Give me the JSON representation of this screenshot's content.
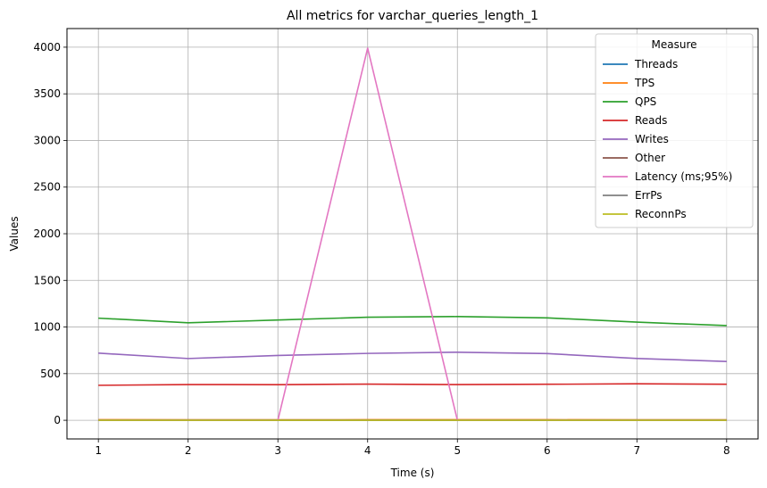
{
  "chart_data": {
    "type": "line",
    "title": "All metrics for varchar_queries_length_1",
    "xlabel": "Time (s)",
    "ylabel": "Values",
    "x": [
      1,
      2,
      3,
      4,
      5,
      6,
      7,
      8
    ],
    "xlim": [
      0.65,
      8.35
    ],
    "ylim": [
      -200,
      4200
    ],
    "xticks": [
      1,
      2,
      3,
      4,
      5,
      6,
      7,
      8
    ],
    "yticks": [
      0,
      500,
      1000,
      1500,
      2000,
      2500,
      3000,
      3500,
      4000
    ],
    "grid": true,
    "legend": {
      "title": "Measure",
      "placement": "top-right"
    },
    "series": [
      {
        "name": "Threads",
        "color": "#1f77b4",
        "values": [
          4,
          4,
          4,
          4,
          4,
          4,
          4,
          4
        ]
      },
      {
        "name": "TPS",
        "color": "#ff7f0e",
        "values": [
          6,
          5,
          5,
          6,
          6,
          6,
          5,
          5
        ]
      },
      {
        "name": "QPS",
        "color": "#2ca02c",
        "values": [
          1095,
          1045,
          1075,
          1105,
          1112,
          1098,
          1052,
          1015
        ]
      },
      {
        "name": "Reads",
        "color": "#d62728",
        "values": [
          375,
          383,
          382,
          388,
          383,
          386,
          391,
          386
        ]
      },
      {
        "name": "Writes",
        "color": "#9467bd",
        "values": [
          720,
          662,
          695,
          717,
          730,
          715,
          663,
          630
        ]
      },
      {
        "name": "Other",
        "color": "#8c564b",
        "values": [
          0,
          0,
          0,
          0,
          0,
          0,
          0,
          0
        ]
      },
      {
        "name": "Latency (ms;95%)",
        "color": "#e377c2",
        "values": [
          0,
          0,
          0,
          3990,
          0,
          0,
          0,
          0
        ]
      },
      {
        "name": "ErrPs",
        "color": "#7f7f7f",
        "values": [
          0,
          0,
          0,
          0,
          0,
          0,
          0,
          0
        ]
      },
      {
        "name": "ReconnPs",
        "color": "#bcbd22",
        "values": [
          0,
          0,
          0,
          0,
          0,
          0,
          0,
          0
        ]
      }
    ]
  }
}
